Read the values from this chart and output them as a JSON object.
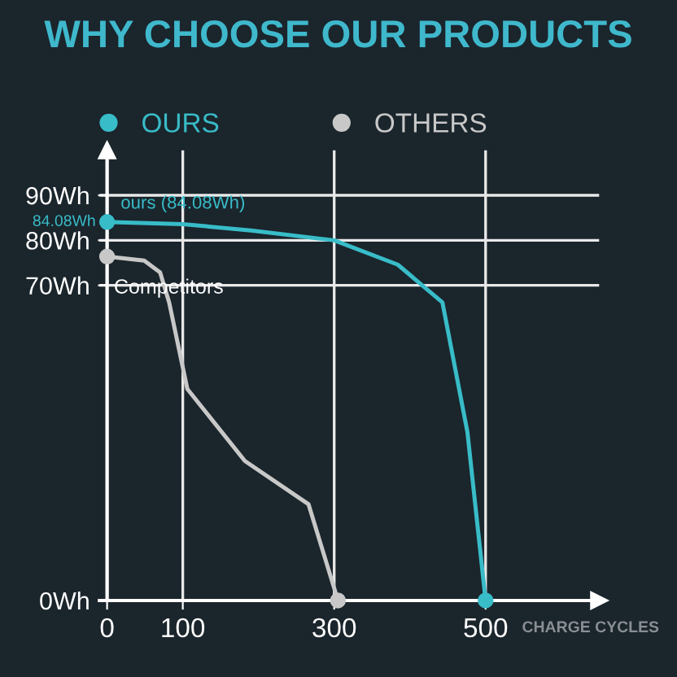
{
  "chart_data": {
    "type": "line",
    "title": "WHY CHOOSE OUR PRODUCTS",
    "xlabel": "CHARGE CYCLES",
    "xlim": [
      -10,
      650
    ],
    "xticks": [
      0,
      100,
      300,
      500
    ],
    "ylim": [
      0,
      100
    ],
    "yticks": [
      {
        "value": 0,
        "label": "0Wh"
      },
      {
        "value": 70,
        "label": "70Wh"
      },
      {
        "value": 80,
        "label": "80Wh"
      },
      {
        "value": 90,
        "label": "90Wh"
      }
    ],
    "grid": true,
    "legend": "top",
    "line_style": "solid",
    "series": [
      {
        "name": "OURS",
        "color": "#38bcc8",
        "x": [
          0,
          100,
          190,
          300,
          384,
          443,
          476,
          500
        ],
        "values": [
          84.08,
          83.6,
          82.2,
          80,
          74.6,
          66.2,
          37.4,
          0
        ]
      },
      {
        "name": "OTHERS",
        "color": "#c8c8c8",
        "x": [
          0,
          49,
          70,
          82,
          106,
          182,
          266,
          305
        ],
        "values": [
          76.4,
          75.5,
          72.9,
          66.2,
          47,
          31,
          21.4,
          0
        ]
      }
    ],
    "annotations": [
      "ours (84.08Wh)",
      "84.08Wh",
      "Competitors"
    ]
  }
}
